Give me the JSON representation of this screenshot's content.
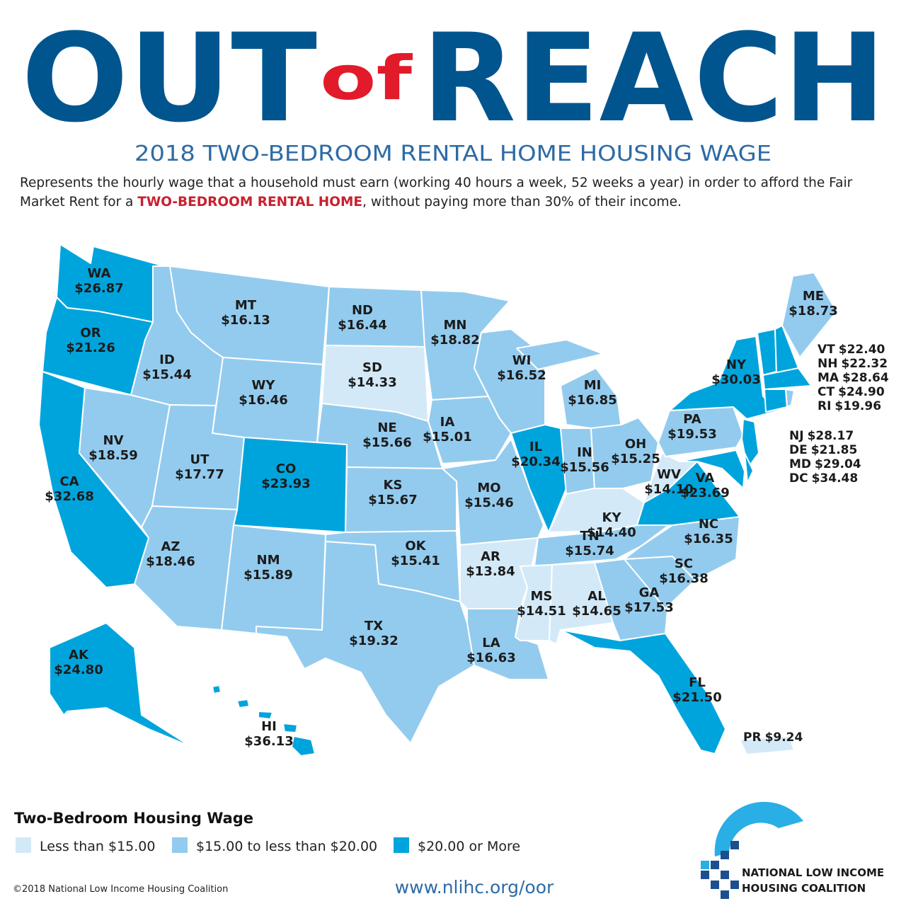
{
  "header": {
    "title_left": "OUT",
    "title_mid": "of",
    "title_right": "REACH",
    "subtitle": "2018 TWO-BEDROOM RENTAL HOME HOUSING WAGE",
    "description": [
      "Represents the hourly wage that a household must earn (working 40 hours a week, 52 weeks a year) in order to afford the Fair Market Rent for a ",
      "TWO-BEDROOM RENTAL HOME",
      ", without paying more than 30% of their income."
    ]
  },
  "legend": {
    "title": "Two-Bedroom Housing Wage",
    "items": [
      {
        "label": "Less than $15.00",
        "color": "#d3e9f7"
      },
      {
        "label": "$15.00 to less than $20.00",
        "color": "#93cbee"
      },
      {
        "label": "$20.00 or More",
        "color": "#00a4dd"
      }
    ]
  },
  "states": [
    {
      "abbr": "WA",
      "wage": "$26.87",
      "color": "#00a4dd"
    },
    {
      "abbr": "OR",
      "wage": "$21.26",
      "color": "#00a4dd"
    },
    {
      "abbr": "CA",
      "wage": "$32.68",
      "color": "#00a4dd"
    },
    {
      "abbr": "NV",
      "wage": "$18.59",
      "color": "#93cbee"
    },
    {
      "abbr": "ID",
      "wage": "$15.44",
      "color": "#93cbee"
    },
    {
      "abbr": "MT",
      "wage": "$16.13",
      "color": "#93cbee"
    },
    {
      "abbr": "WY",
      "wage": "$16.46",
      "color": "#93cbee"
    },
    {
      "abbr": "UT",
      "wage": "$17.77",
      "color": "#93cbee"
    },
    {
      "abbr": "CO",
      "wage": "$23.93",
      "color": "#00a4dd"
    },
    {
      "abbr": "AZ",
      "wage": "$18.46",
      "color": "#93cbee"
    },
    {
      "abbr": "NM",
      "wage": "$15.89",
      "color": "#93cbee"
    },
    {
      "abbr": "ND",
      "wage": "$16.44",
      "color": "#93cbee"
    },
    {
      "abbr": "SD",
      "wage": "$14.33",
      "color": "#d3e9f7"
    },
    {
      "abbr": "NE",
      "wage": "$15.66",
      "color": "#93cbee"
    },
    {
      "abbr": "KS",
      "wage": "$15.67",
      "color": "#93cbee"
    },
    {
      "abbr": "OK",
      "wage": "$15.41",
      "color": "#93cbee"
    },
    {
      "abbr": "TX",
      "wage": "$19.32",
      "color": "#93cbee"
    },
    {
      "abbr": "MN",
      "wage": "$18.82",
      "color": "#93cbee"
    },
    {
      "abbr": "IA",
      "wage": "$15.01",
      "color": "#93cbee"
    },
    {
      "abbr": "MO",
      "wage": "$15.46",
      "color": "#93cbee"
    },
    {
      "abbr": "AR",
      "wage": "$13.84",
      "color": "#d3e9f7"
    },
    {
      "abbr": "LA",
      "wage": "$16.63",
      "color": "#93cbee"
    },
    {
      "abbr": "WI",
      "wage": "$16.52",
      "color": "#93cbee"
    },
    {
      "abbr": "IL",
      "wage": "$20.34",
      "color": "#00a4dd"
    },
    {
      "abbr": "MI",
      "wage": "$16.85",
      "color": "#93cbee"
    },
    {
      "abbr": "IN",
      "wage": "$15.56",
      "color": "#93cbee"
    },
    {
      "abbr": "OH",
      "wage": "$15.25",
      "color": "#93cbee"
    },
    {
      "abbr": "KY",
      "wage": "$14.40",
      "color": "#d3e9f7"
    },
    {
      "abbr": "TN",
      "wage": "$15.74",
      "color": "#93cbee"
    },
    {
      "abbr": "MS",
      "wage": "$14.51",
      "color": "#d3e9f7"
    },
    {
      "abbr": "AL",
      "wage": "$14.65",
      "color": "#d3e9f7"
    },
    {
      "abbr": "GA",
      "wage": "$17.53",
      "color": "#93cbee"
    },
    {
      "abbr": "FL",
      "wage": "$21.50",
      "color": "#00a4dd"
    },
    {
      "abbr": "SC",
      "wage": "$16.38",
      "color": "#93cbee"
    },
    {
      "abbr": "NC",
      "wage": "$16.35",
      "color": "#93cbee"
    },
    {
      "abbr": "VA",
      "wage": "$23.69",
      "color": "#00a4dd"
    },
    {
      "abbr": "WV",
      "wage": "$14.10",
      "color": "#d3e9f7"
    },
    {
      "abbr": "PA",
      "wage": "$19.53",
      "color": "#93cbee"
    },
    {
      "abbr": "NY",
      "wage": "$30.03",
      "color": "#00a4dd"
    },
    {
      "abbr": "ME",
      "wage": "$18.73",
      "color": "#93cbee"
    },
    {
      "abbr": "VT",
      "wage": "$22.40",
      "color": "#00a4dd"
    },
    {
      "abbr": "NH",
      "wage": "$22.32",
      "color": "#00a4dd"
    },
    {
      "abbr": "MA",
      "wage": "$28.64",
      "color": "#00a4dd"
    },
    {
      "abbr": "CT",
      "wage": "$24.90",
      "color": "#00a4dd"
    },
    {
      "abbr": "RI",
      "wage": "$19.96",
      "color": "#93cbee"
    },
    {
      "abbr": "NJ",
      "wage": "$28.17",
      "color": "#00a4dd"
    },
    {
      "abbr": "DE",
      "wage": "$21.85",
      "color": "#00a4dd"
    },
    {
      "abbr": "MD",
      "wage": "$29.04",
      "color": "#00a4dd"
    },
    {
      "abbr": "DC",
      "wage": "$34.48",
      "color": "#00a4dd"
    },
    {
      "abbr": "AK",
      "wage": "$24.80",
      "color": "#00a4dd"
    },
    {
      "abbr": "HI",
      "wage": "$36.13",
      "color": "#00a4dd"
    },
    {
      "abbr": "PR",
      "wage": "$9.24",
      "color": "#d3e9f7"
    }
  ],
  "footer": {
    "copyright": "©2018 National Low Income Housing Coalition",
    "url": "www.nlihc.org/oor",
    "org_line1": "NATIONAL LOW INCOME",
    "org_line2": "HOUSING COALITION"
  }
}
